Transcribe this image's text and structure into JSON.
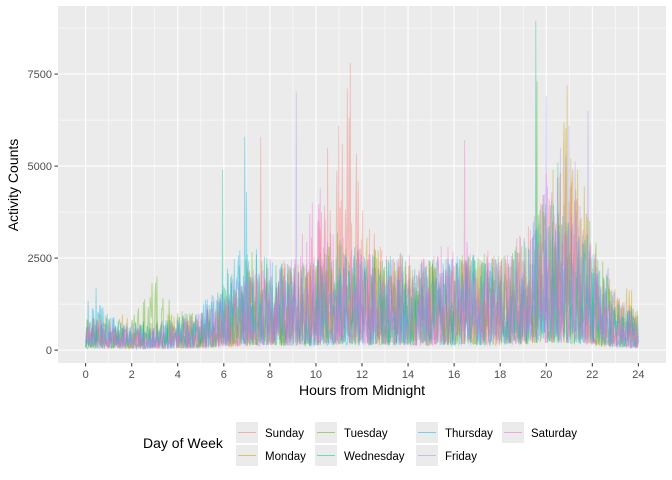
{
  "chart_data": {
    "type": "line",
    "xlabel": "Hours from Midnight",
    "ylabel": "Activity Counts",
    "xlim": [
      -1.2,
      25.2
    ],
    "ylim": [
      -350,
      9350
    ],
    "x_ticks": [
      0,
      2,
      4,
      6,
      8,
      10,
      12,
      14,
      16,
      18,
      20,
      22,
      24
    ],
    "y_ticks": [
      0,
      2500,
      5000,
      7500
    ],
    "y_tick_labels": [
      "0",
      "2500",
      "5000",
      "7500"
    ],
    "grid": true,
    "legend": {
      "title": "Day of Week",
      "position": "bottom"
    },
    "series": [
      {
        "name": "Sunday",
        "color": "#F8766D",
        "envelope": [
          [
            0,
            1000
          ],
          [
            1,
            700
          ],
          [
            2,
            650
          ],
          [
            3,
            700
          ],
          [
            4,
            800
          ],
          [
            5,
            1100
          ],
          [
            6,
            1500
          ],
          [
            7,
            2300
          ],
          [
            8,
            2400
          ],
          [
            9,
            2500
          ],
          [
            10,
            3500
          ],
          [
            11,
            5500
          ],
          [
            11.5,
            7800
          ],
          [
            12,
            3900
          ],
          [
            13,
            2600
          ],
          [
            14,
            2600
          ],
          [
            15,
            2600
          ],
          [
            16,
            2600
          ],
          [
            17,
            2700
          ],
          [
            18,
            2600
          ],
          [
            19,
            3200
          ],
          [
            20,
            4500
          ],
          [
            21,
            5000
          ],
          [
            22,
            2300
          ],
          [
            23,
            1600
          ],
          [
            24,
            900
          ]
        ],
        "peaks": [
          [
            7.6,
            5800
          ],
          [
            10.5,
            5500
          ],
          [
            11.5,
            7800
          ],
          [
            11.0,
            6100
          ]
        ]
      },
      {
        "name": "Monday",
        "color": "#C49A00",
        "envelope": [
          [
            0,
            900
          ],
          [
            1,
            1100
          ],
          [
            2,
            900
          ],
          [
            3,
            850
          ],
          [
            4,
            1100
          ],
          [
            5,
            1000
          ],
          [
            6,
            1500
          ],
          [
            7,
            2100
          ],
          [
            8,
            2200
          ],
          [
            9,
            2400
          ],
          [
            10,
            2500
          ],
          [
            11,
            2600
          ],
          [
            12,
            3300
          ],
          [
            13,
            2600
          ],
          [
            14,
            2600
          ],
          [
            15,
            2500
          ],
          [
            16,
            2600
          ],
          [
            17,
            2600
          ],
          [
            18,
            2600
          ],
          [
            19,
            2800
          ],
          [
            20,
            3900
          ],
          [
            21,
            7200
          ],
          [
            22,
            3000
          ],
          [
            23,
            1800
          ],
          [
            24,
            1800
          ]
        ],
        "peaks": [
          [
            20.9,
            7200
          ],
          [
            20.3,
            4900
          ]
        ]
      },
      {
        "name": "Tuesday",
        "color": "#53B400",
        "envelope": [
          [
            0,
            900
          ],
          [
            1,
            1000
          ],
          [
            2,
            900
          ],
          [
            3,
            2000
          ],
          [
            4,
            1000
          ],
          [
            5,
            1000
          ],
          [
            6,
            1700
          ],
          [
            7,
            2700
          ],
          [
            8,
            2600
          ],
          [
            9,
            2400
          ],
          [
            10,
            2500
          ],
          [
            11,
            3300
          ],
          [
            12,
            3000
          ],
          [
            13,
            2700
          ],
          [
            14,
            2600
          ],
          [
            15,
            2500
          ],
          [
            16,
            2600
          ],
          [
            17,
            2700
          ],
          [
            18,
            2600
          ],
          [
            19,
            3000
          ],
          [
            20,
            4200
          ],
          [
            21,
            3300
          ],
          [
            22,
            3500
          ],
          [
            23,
            1500
          ],
          [
            24,
            1100
          ]
        ],
        "peaks": [
          [
            3.1,
            2000
          ],
          [
            19.6,
            7300
          ],
          [
            21.9,
            3500
          ]
        ]
      },
      {
        "name": "Wednesday",
        "color": "#00C094",
        "envelope": [
          [
            0,
            800
          ],
          [
            1,
            900
          ],
          [
            2,
            700
          ],
          [
            3,
            800
          ],
          [
            4,
            900
          ],
          [
            5,
            1000
          ],
          [
            6,
            2000
          ],
          [
            7,
            2600
          ],
          [
            8,
            2600
          ],
          [
            9,
            2300
          ],
          [
            10,
            2400
          ],
          [
            11,
            3000
          ],
          [
            12,
            2800
          ],
          [
            13,
            2600
          ],
          [
            14,
            2500
          ],
          [
            15,
            2500
          ],
          [
            16,
            2600
          ],
          [
            17,
            2600
          ],
          [
            18,
            2600
          ],
          [
            19,
            3200
          ],
          [
            20,
            5000
          ],
          [
            21,
            3500
          ],
          [
            22,
            3000
          ],
          [
            23,
            1500
          ],
          [
            24,
            900
          ]
        ],
        "peaks": [
          [
            5.95,
            4900
          ],
          [
            19.55,
            8950
          ],
          [
            20.5,
            5100
          ]
        ]
      },
      {
        "name": "Thursday",
        "color": "#00B6EB",
        "envelope": [
          [
            0,
            1700
          ],
          [
            1,
            1000
          ],
          [
            2,
            800
          ],
          [
            3,
            800
          ],
          [
            4,
            900
          ],
          [
            5,
            1400
          ],
          [
            6,
            2300
          ],
          [
            7,
            3300
          ],
          [
            8,
            2600
          ],
          [
            9,
            2300
          ],
          [
            10,
            2500
          ],
          [
            11,
            2600
          ],
          [
            12,
            2600
          ],
          [
            13,
            2600
          ],
          [
            14,
            2500
          ],
          [
            15,
            2500
          ],
          [
            16,
            2600
          ],
          [
            17,
            2600
          ],
          [
            18,
            2600
          ],
          [
            19,
            3000
          ],
          [
            20,
            4300
          ],
          [
            21,
            3500
          ],
          [
            22,
            2900
          ],
          [
            23,
            1400
          ],
          [
            24,
            900
          ]
        ],
        "peaks": [
          [
            0.45,
            1700
          ],
          [
            6.9,
            5800
          ],
          [
            7.0,
            4300
          ]
        ]
      },
      {
        "name": "Friday",
        "color": "#A58AFF",
        "envelope": [
          [
            0,
            1100
          ],
          [
            1,
            900
          ],
          [
            2,
            800
          ],
          [
            3,
            800
          ],
          [
            4,
            900
          ],
          [
            5,
            1200
          ],
          [
            6,
            1900
          ],
          [
            7,
            2500
          ],
          [
            8,
            2500
          ],
          [
            9,
            2500
          ],
          [
            10,
            2500
          ],
          [
            11,
            2600
          ],
          [
            12,
            2600
          ],
          [
            13,
            2600
          ],
          [
            14,
            2600
          ],
          [
            15,
            2600
          ],
          [
            16,
            2700
          ],
          [
            17,
            2600
          ],
          [
            18,
            2600
          ],
          [
            19,
            3100
          ],
          [
            20,
            4600
          ],
          [
            21,
            5600
          ],
          [
            22,
            4200
          ],
          [
            23,
            1500
          ],
          [
            24,
            1000
          ]
        ],
        "peaks": [
          [
            9.15,
            7000
          ],
          [
            20.0,
            6900
          ],
          [
            21.0,
            6100
          ],
          [
            21.8,
            6500
          ],
          [
            20.6,
            5500
          ]
        ]
      },
      {
        "name": "Saturday",
        "color": "#FB61D7",
        "envelope": [
          [
            0,
            900
          ],
          [
            1,
            800
          ],
          [
            2,
            700
          ],
          [
            3,
            700
          ],
          [
            4,
            800
          ],
          [
            5,
            1000
          ],
          [
            6,
            1400
          ],
          [
            7,
            2000
          ],
          [
            8,
            2300
          ],
          [
            9,
            2400
          ],
          [
            10,
            4400
          ],
          [
            11,
            3200
          ],
          [
            12,
            3000
          ],
          [
            13,
            2600
          ],
          [
            14,
            2800
          ],
          [
            15,
            2600
          ],
          [
            16,
            3500
          ],
          [
            17,
            2800
          ],
          [
            18,
            2700
          ],
          [
            19,
            3300
          ],
          [
            20,
            4600
          ],
          [
            21,
            4000
          ],
          [
            22,
            3000
          ],
          [
            23,
            1600
          ],
          [
            24,
            1100
          ]
        ],
        "peaks": [
          [
            16.45,
            5700
          ],
          [
            10.2,
            4400
          ],
          [
            20.0,
            4800
          ]
        ]
      }
    ]
  }
}
